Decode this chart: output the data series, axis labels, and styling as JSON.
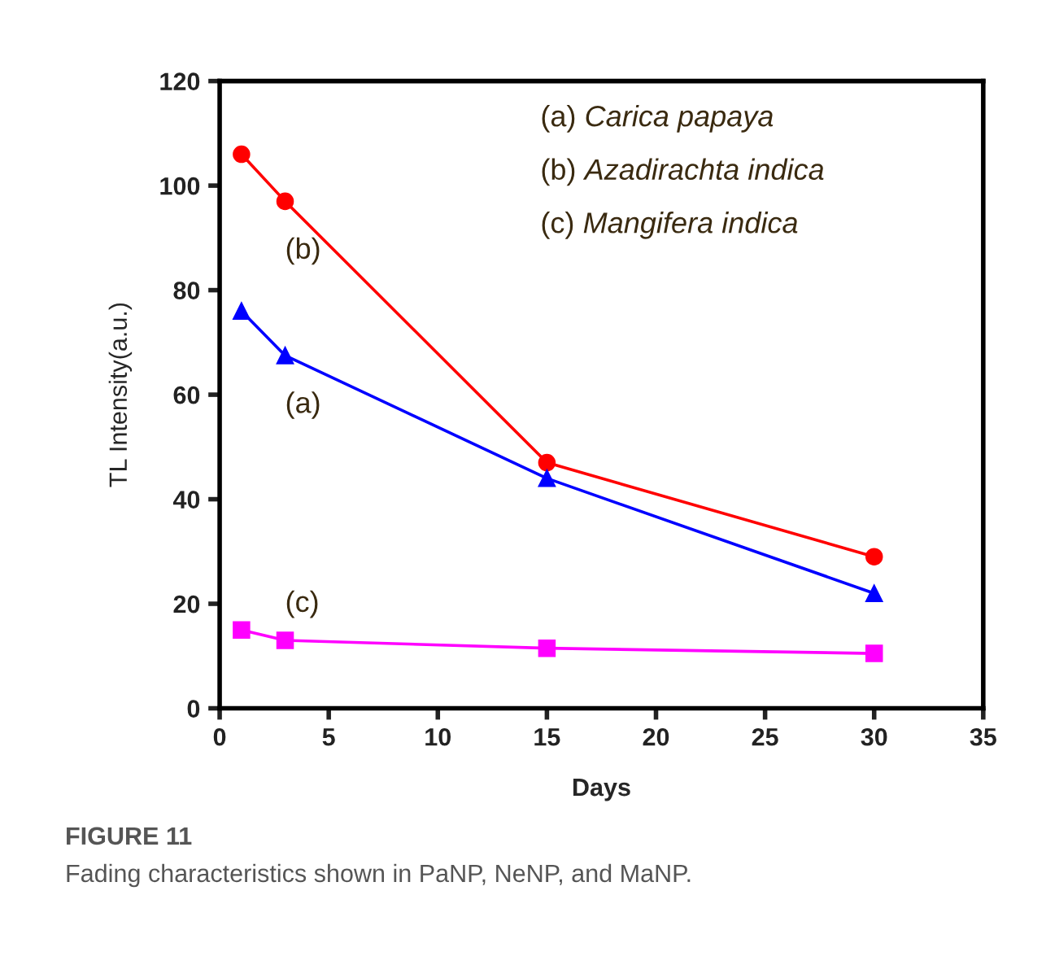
{
  "chart_data": {
    "type": "line",
    "title": "FIGURE 11",
    "subtitle": "Fading characteristics shown in PaNP, NeNP, and MaNP.",
    "xlabel": "Days",
    "ylabel": "TL Intensity(a.u.)",
    "x": [
      1,
      3,
      15,
      30
    ],
    "series": [
      {
        "color": "#ff0000",
        "marker": "circle",
        "values": [
          106,
          97,
          47,
          29
        ]
      },
      {
        "color": "#0000ff",
        "marker": "triangle",
        "values": [
          76,
          67.5,
          44,
          22
        ]
      },
      {
        "color": "#ff00ff",
        "marker": "square",
        "values": [
          15,
          13,
          11.5,
          10.5
        ]
      }
    ],
    "xlim": [
      0,
      35
    ],
    "xticks": [
      0,
      5,
      10,
      15,
      20,
      25,
      30,
      35
    ],
    "ylim": [
      0,
      120
    ],
    "yticks": [
      0,
      20,
      40,
      60,
      80,
      100,
      120
    ],
    "grid": false,
    "legend": false,
    "line_style": "solid",
    "annotations": [
      "(a) Carica papaya",
      "(b) Azadirachta indica",
      "(c) Mangifera indica",
      "(b)",
      "(a)",
      "(c)"
    ]
  }
}
